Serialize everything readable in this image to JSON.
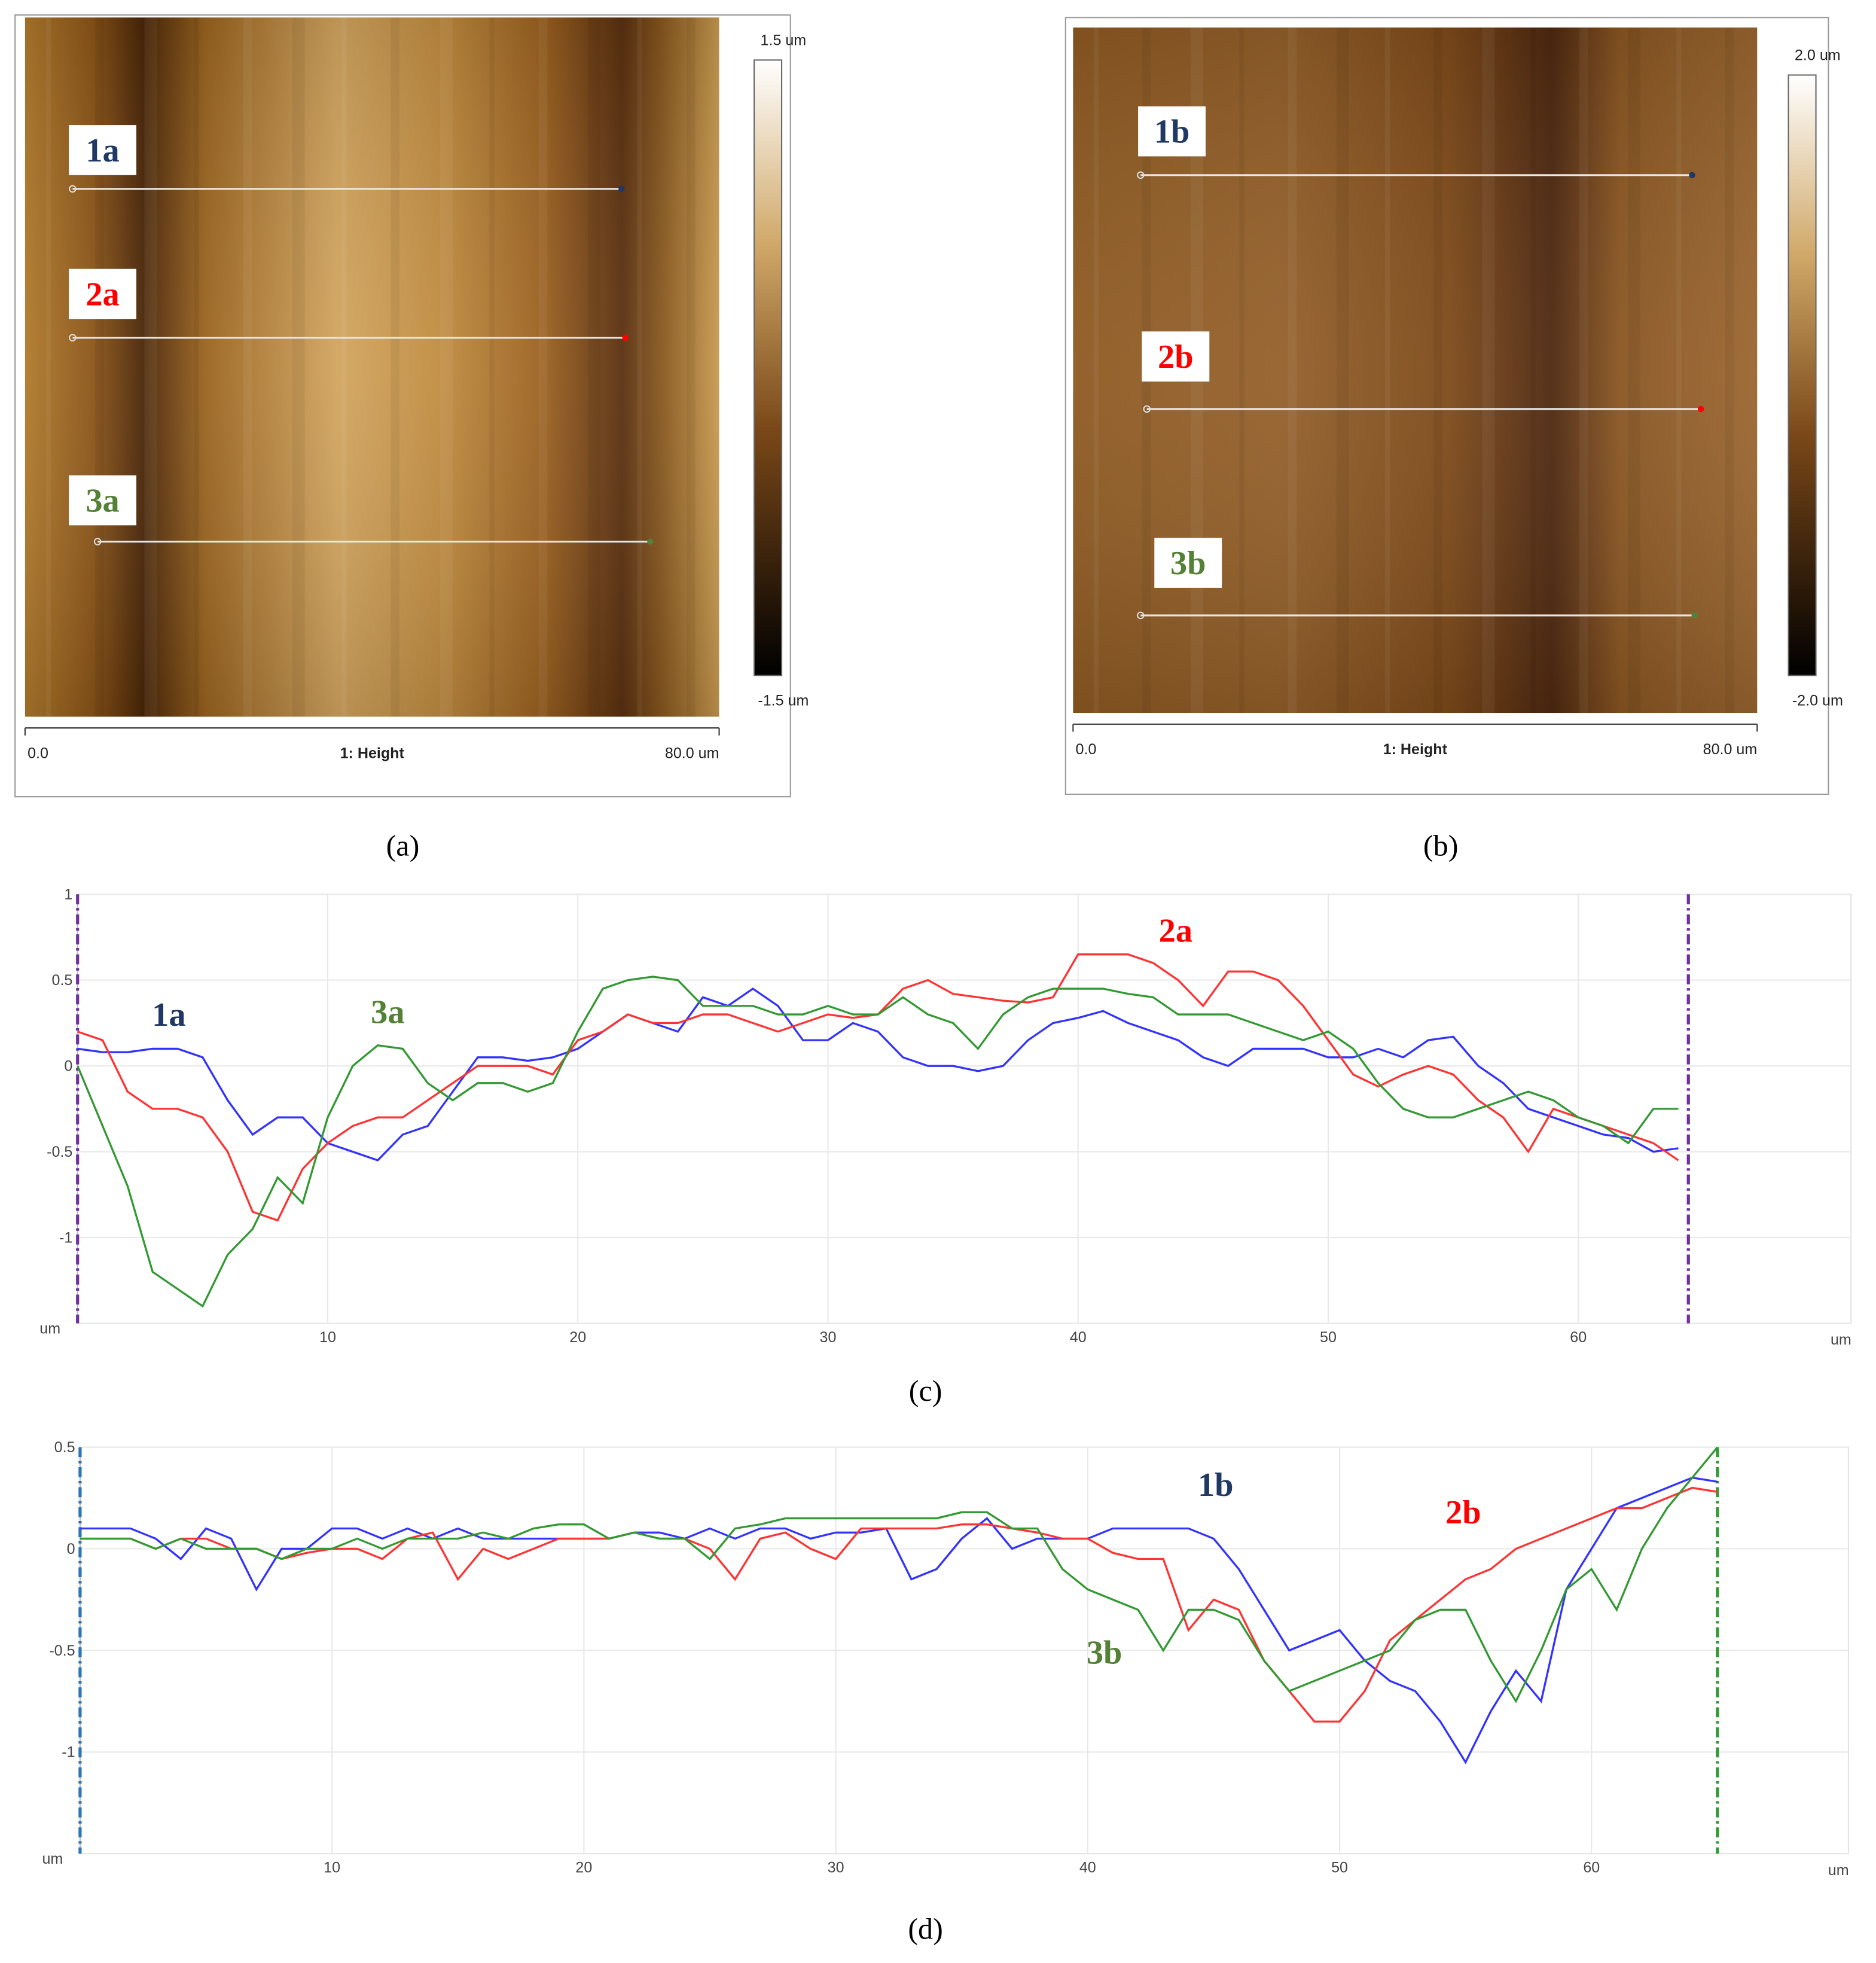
{
  "images": [
    {
      "colorbar_max": "1.5 um",
      "colorbar_min": "-1.5 um",
      "axis_start": "0.0",
      "axis_end": "80.0 um",
      "channel": "1: Height",
      "caption": "(a)",
      "profile_lines": [
        {
          "label": "1a",
          "color": "#1f3864"
        },
        {
          "label": "2a",
          "color": "#ff0000"
        },
        {
          "label": "3a",
          "color": "#538135"
        }
      ]
    },
    {
      "colorbar_max": "2.0 um",
      "colorbar_min": "-2.0 um",
      "axis_start": "0.0",
      "axis_end": "80.0 um",
      "channel": "1: Height",
      "caption": "(b)",
      "profile_lines": [
        {
          "label": "1b",
          "color": "#1f3864"
        },
        {
          "label": "2b",
          "color": "#ff0000"
        },
        {
          "label": "3b",
          "color": "#538135"
        }
      ]
    }
  ],
  "chart_data": [
    {
      "type": "line",
      "caption": "(c)",
      "x_label": "um",
      "y_label": "um",
      "grid": true,
      "xlim": [
        0,
        70.9
      ],
      "xticks": [
        10,
        20,
        30,
        40,
        50,
        60
      ],
      "ylim": [
        -1.5,
        1
      ],
      "yticks": [
        -1,
        -0.5,
        0,
        0.5,
        1
      ],
      "cursors": [
        {
          "x": 0,
          "color": "#7030a0"
        },
        {
          "x": 64.4,
          "color": "#7030a0"
        }
      ],
      "x": [
        0,
        1,
        2,
        3,
        4,
        5,
        6,
        7,
        8,
        9,
        10,
        11,
        12,
        13,
        14,
        15,
        16,
        17,
        18,
        19,
        20,
        21,
        22,
        23,
        24,
        25,
        26,
        27,
        28,
        29,
        30,
        31,
        32,
        33,
        34,
        35,
        36,
        37,
        38,
        39,
        40,
        41,
        42,
        43,
        44,
        45,
        46,
        47,
        48,
        49,
        50,
        51,
        52,
        53,
        54,
        55,
        56,
        57,
        58,
        59,
        60,
        61,
        62,
        63,
        64
      ],
      "series": [
        {
          "name": "1a",
          "color": "#3333ff",
          "label_color": "#1f3864",
          "values": [
            0.1,
            0.08,
            0.08,
            0.1,
            0.1,
            0.05,
            -0.2,
            -0.4,
            -0.3,
            -0.3,
            -0.45,
            -0.5,
            -0.55,
            -0.4,
            -0.35,
            -0.15,
            0.05,
            0.05,
            0.03,
            0.05,
            0.1,
            0.2,
            0.3,
            0.25,
            0.2,
            0.4,
            0.35,
            0.45,
            0.35,
            0.15,
            0.15,
            0.25,
            0.2,
            0.05,
            0,
            0,
            -0.03,
            0,
            0.15,
            0.25,
            0.28,
            0.32,
            0.25,
            0.2,
            0.15,
            0.05,
            0,
            0.1,
            0.1,
            0.1,
            0.05,
            0.05,
            0.1,
            0.05,
            0.15,
            0.17,
            0,
            -0.1,
            -0.25,
            -0.3,
            -0.35,
            -0.4,
            -0.42,
            -0.5,
            -0.48
          ]
        },
        {
          "name": "2a",
          "color": "#ff3333",
          "label_color": "#ff0000",
          "values": [
            0.2,
            0.15,
            -0.15,
            -0.25,
            -0.25,
            -0.3,
            -0.5,
            -0.85,
            -0.9,
            -0.6,
            -0.45,
            -0.35,
            -0.3,
            -0.3,
            -0.2,
            -0.1,
            0,
            0,
            0,
            -0.05,
            0.15,
            0.2,
            0.3,
            0.25,
            0.25,
            0.3,
            0.3,
            0.25,
            0.2,
            0.25,
            0.3,
            0.28,
            0.3,
            0.45,
            0.5,
            0.42,
            0.4,
            0.38,
            0.37,
            0.4,
            0.65,
            0.65,
            0.65,
            0.6,
            0.5,
            0.35,
            0.55,
            0.55,
            0.5,
            0.35,
            0.15,
            -0.05,
            -0.12,
            -0.05,
            0,
            -0.05,
            -0.2,
            -0.3,
            -0.5,
            -0.25,
            -0.3,
            -0.35,
            -0.4,
            -0.45,
            -0.55
          ]
        },
        {
          "name": "3a",
          "color": "#339933",
          "label_color": "#538135",
          "values": [
            0,
            -0.35,
            -0.7,
            -1.2,
            -1.3,
            -1.4,
            -1.1,
            -0.95,
            -0.65,
            -0.8,
            -0.3,
            0,
            0.12,
            0.1,
            -0.1,
            -0.2,
            -0.1,
            -0.1,
            -0.15,
            -0.1,
            0.2,
            0.45,
            0.5,
            0.52,
            0.5,
            0.35,
            0.35,
            0.35,
            0.3,
            0.3,
            0.35,
            0.3,
            0.3,
            0.4,
            0.3,
            0.25,
            0.1,
            0.3,
            0.4,
            0.45,
            0.45,
            0.45,
            0.42,
            0.4,
            0.3,
            0.3,
            0.3,
            0.25,
            0.2,
            0.15,
            0.2,
            0.1,
            -0.1,
            -0.25,
            -0.3,
            -0.3,
            -0.25,
            -0.2,
            -0.15,
            -0.2,
            -0.3,
            -0.35,
            -0.45,
            -0.25,
            -0.25
          ]
        }
      ]
    },
    {
      "type": "line",
      "caption": "(d)",
      "x_label": "um",
      "y_label": "um",
      "grid": true,
      "xlim": [
        0,
        70.2
      ],
      "xticks": [
        10,
        20,
        30,
        40,
        50,
        60
      ],
      "ylim": [
        -1.5,
        0.5
      ],
      "yticks": [
        -1,
        -0.5,
        0,
        0.5
      ],
      "cursors": [
        {
          "x": 0,
          "color": "#2e75b6"
        },
        {
          "x": 65,
          "color": "#339933"
        }
      ],
      "x": [
        0,
        1,
        2,
        3,
        4,
        5,
        6,
        7,
        8,
        9,
        10,
        11,
        12,
        13,
        14,
        15,
        16,
        17,
        18,
        19,
        20,
        21,
        22,
        23,
        24,
        25,
        26,
        27,
        28,
        29,
        30,
        31,
        32,
        33,
        34,
        35,
        36,
        37,
        38,
        39,
        40,
        41,
        42,
        43,
        44,
        45,
        46,
        47,
        48,
        49,
        50,
        51,
        52,
        53,
        54,
        55,
        56,
        57,
        58,
        59,
        60,
        61,
        62,
        63,
        64,
        65
      ],
      "series": [
        {
          "name": "1b",
          "color": "#3333ff",
          "label_color": "#1f3864",
          "values": [
            0.1,
            0.1,
            0.1,
            0.05,
            -0.05,
            0.1,
            0.05,
            -0.2,
            0,
            0,
            0.1,
            0.1,
            0.05,
            0.1,
            0.05,
            0.1,
            0.05,
            0.05,
            0.05,
            0.05,
            0.05,
            0.05,
            0.08,
            0.08,
            0.05,
            0.1,
            0.05,
            0.1,
            0.1,
            0.05,
            0.08,
            0.08,
            0.1,
            -0.15,
            -0.1,
            0.05,
            0.15,
            0,
            0.05,
            0.05,
            0.05,
            0.1,
            0.1,
            0.1,
            0.1,
            0.05,
            -0.1,
            -0.3,
            -0.5,
            -0.45,
            -0.4,
            -0.55,
            -0.65,
            -0.7,
            -0.85,
            -1.05,
            -0.8,
            -0.6,
            -0.75,
            -0.2,
            0,
            0.2,
            0.25,
            0.3,
            0.35,
            0.33
          ]
        },
        {
          "name": "2b",
          "color": "#ff3333",
          "label_color": "#ff0000",
          "values": [
            0.05,
            0.05,
            0.05,
            0,
            0.05,
            0.05,
            0,
            0,
            -0.05,
            -0.02,
            0,
            0,
            -0.05,
            0.05,
            0.08,
            -0.15,
            0,
            -0.05,
            0,
            0.05,
            0.05,
            0.05,
            0.08,
            0.05,
            0.05,
            0,
            -0.15,
            0.05,
            0.08,
            0,
            -0.05,
            0.1,
            0.1,
            0.1,
            0.1,
            0.12,
            0.12,
            0.1,
            0.08,
            0.05,
            0.05,
            -0.02,
            -0.05,
            -0.05,
            -0.4,
            -0.25,
            -0.3,
            -0.55,
            -0.7,
            -0.85,
            -0.85,
            -0.7,
            -0.45,
            -0.35,
            -0.25,
            -0.15,
            -0.1,
            0,
            0.05,
            0.1,
            0.15,
            0.2,
            0.2,
            0.25,
            0.3,
            0.28
          ]
        },
        {
          "name": "3b",
          "color": "#339933",
          "label_color": "#538135",
          "values": [
            0.05,
            0.05,
            0.05,
            0,
            0.05,
            0,
            0,
            0,
            -0.05,
            0,
            0,
            0.05,
            0,
            0.05,
            0.05,
            0.05,
            0.08,
            0.05,
            0.1,
            0.12,
            0.12,
            0.05,
            0.08,
            0.05,
            0.05,
            -0.05,
            0.1,
            0.12,
            0.15,
            0.15,
            0.15,
            0.15,
            0.15,
            0.15,
            0.15,
            0.18,
            0.18,
            0.1,
            0.1,
            -0.1,
            -0.2,
            -0.25,
            -0.3,
            -0.5,
            -0.3,
            -0.3,
            -0.35,
            -0.55,
            -0.7,
            -0.65,
            -0.6,
            -0.55,
            -0.5,
            -0.35,
            -0.3,
            -0.3,
            -0.55,
            -0.75,
            -0.5,
            -0.2,
            -0.1,
            -0.3,
            0,
            0.2,
            0.35,
            0.5
          ]
        }
      ]
    }
  ]
}
